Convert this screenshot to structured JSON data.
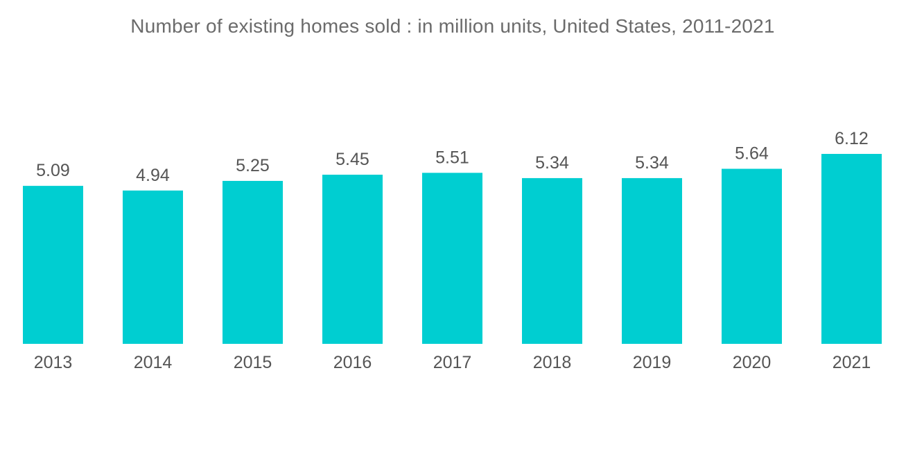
{
  "chart_data": {
    "type": "bar",
    "title": "Number of existing homes sold : in million units, United States, 2011-2021",
    "categories": [
      "2013",
      "2014",
      "2015",
      "2016",
      "2017",
      "2018",
      "2019",
      "2020",
      "2021"
    ],
    "values": [
      5.09,
      4.94,
      5.25,
      5.45,
      5.51,
      5.34,
      5.34,
      5.64,
      6.12
    ],
    "value_labels": [
      "5.09",
      "4.94",
      "5.25",
      "5.45",
      "5.51",
      "5.34",
      "5.34",
      "5.64",
      "6.12"
    ],
    "xlabel": "",
    "ylabel": "",
    "ylim": [
      0,
      6.12
    ],
    "grid": false,
    "legend": "none",
    "bar_color": "#00CED1",
    "text_color": "#555555"
  }
}
